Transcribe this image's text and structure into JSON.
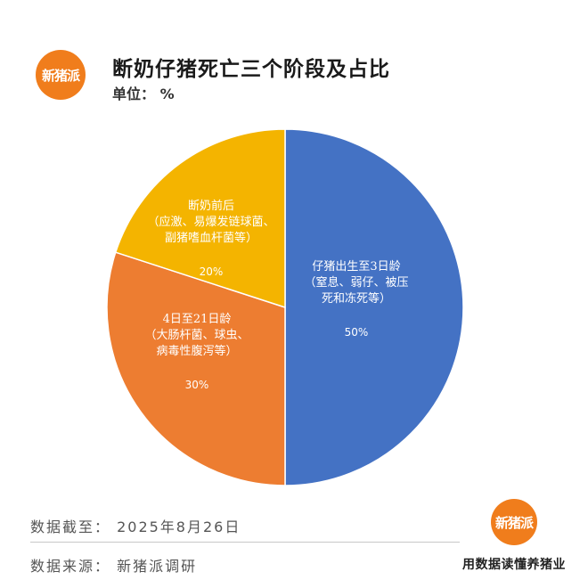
{
  "header": {
    "logo_text": "新猪派",
    "title": "断奶仔猪死亡三个阶段及占比",
    "unit": "单位：  %"
  },
  "chart_data": {
    "type": "pie",
    "title": "断奶仔猪死亡三个阶段及占比",
    "unit": "%",
    "slices": [
      {
        "label": "仔猪出生至3日龄",
        "sublabel": [
          "（窒息、弱仔、被压",
          "死和冻死等）"
        ],
        "value": 50,
        "value_label": "50%",
        "color": "#4472c4"
      },
      {
        "label": "4日至21日龄",
        "sublabel": [
          "（大肠杆菌、球虫、",
          "病毒性腹泻等）"
        ],
        "value": 30,
        "value_label": "30%",
        "color": "#ed7d31"
      },
      {
        "label": "断奶前后",
        "sublabel": [
          "（应激、易爆发链球菌、",
          "副猪嗜血杆菌等）"
        ],
        "value": 20,
        "value_label": "20%",
        "color": "#f4b400"
      }
    ]
  },
  "footer": {
    "date_line": "数据截至：  2025年8月26日",
    "source_line": "数据来源：  新猪派调研",
    "logo_text": "新猪派",
    "slogan": "用数据读懂养猪业"
  }
}
